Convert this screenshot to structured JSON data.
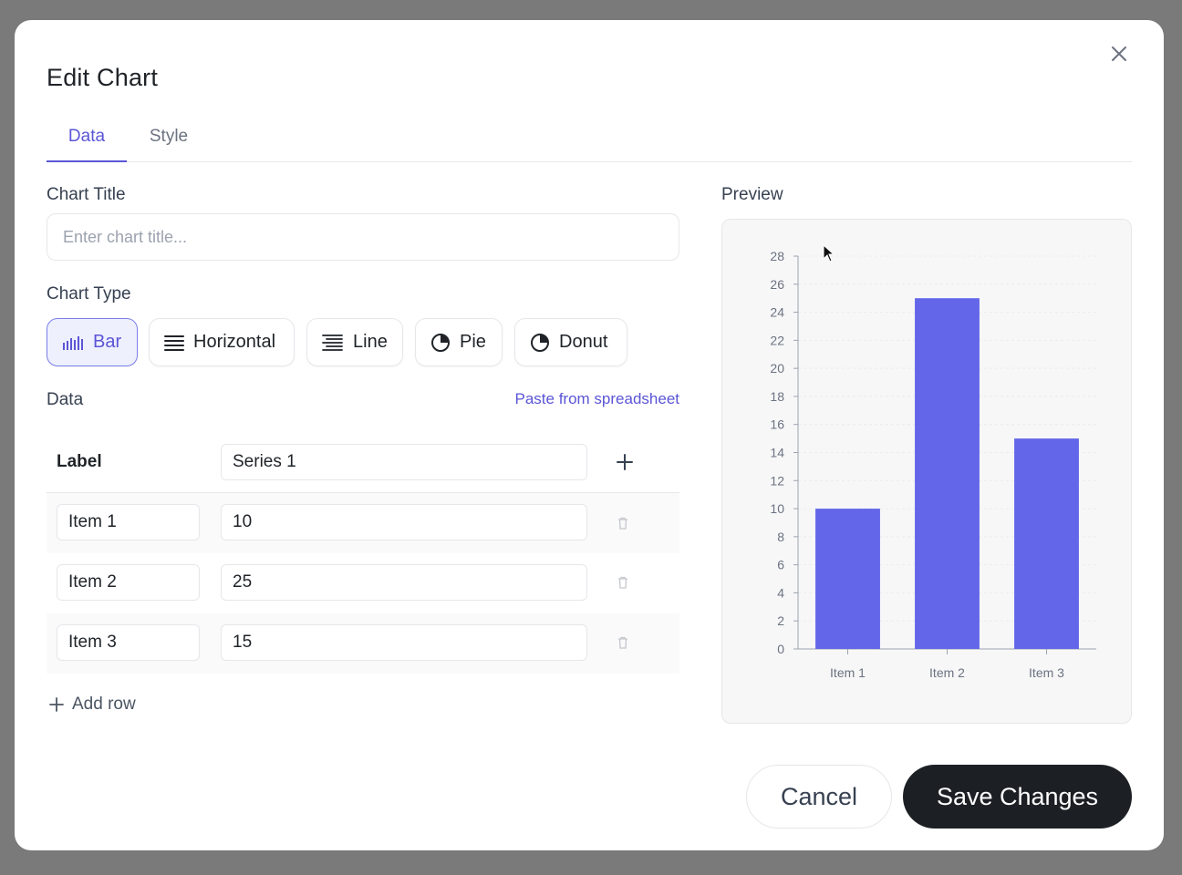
{
  "dialog": {
    "title": "Edit Chart",
    "tabs": [
      {
        "label": "Data",
        "active": true
      },
      {
        "label": "Style",
        "active": false
      }
    ]
  },
  "chart_title_field": {
    "label": "Chart Title",
    "value": "",
    "placeholder": "Enter chart title..."
  },
  "chart_type": {
    "label": "Chart Type",
    "selected": "Bar",
    "options": [
      {
        "label": "Bar",
        "icon": "bar-chart-icon"
      },
      {
        "label": "Horizontal",
        "icon": "horizontal-bars-icon"
      },
      {
        "label": "Line",
        "icon": "line-list-icon"
      },
      {
        "label": "Pie",
        "icon": "pie-chart-icon"
      },
      {
        "label": "Donut",
        "icon": "donut-chart-icon"
      }
    ]
  },
  "data_section": {
    "label": "Data",
    "paste_link": "Paste from spreadsheet",
    "label_header": "Label",
    "series_header": "Series 1",
    "rows": [
      {
        "label": "Item 1",
        "value": "10"
      },
      {
        "label": "Item 2",
        "value": "25"
      },
      {
        "label": "Item 3",
        "value": "15"
      }
    ],
    "add_row": "Add row"
  },
  "preview": {
    "label": "Preview"
  },
  "chart_data": {
    "type": "bar",
    "categories": [
      "Item 1",
      "Item 2",
      "Item 3"
    ],
    "series": [
      {
        "values": [
          10,
          25,
          15
        ]
      }
    ],
    "title": "",
    "xlabel": "",
    "ylabel": "",
    "ylim": [
      0,
      28
    ],
    "yticks": [
      0,
      2,
      4,
      6,
      8,
      10,
      12,
      14,
      16,
      18,
      20,
      22,
      24,
      26,
      28
    ],
    "grid": true,
    "bar_color": "#6366e8"
  },
  "footer": {
    "cancel": "Cancel",
    "save": "Save Changes"
  },
  "colors": {
    "accent": "#5b55d6",
    "bar": "#6366e8",
    "primary_button": "#1c2024"
  }
}
